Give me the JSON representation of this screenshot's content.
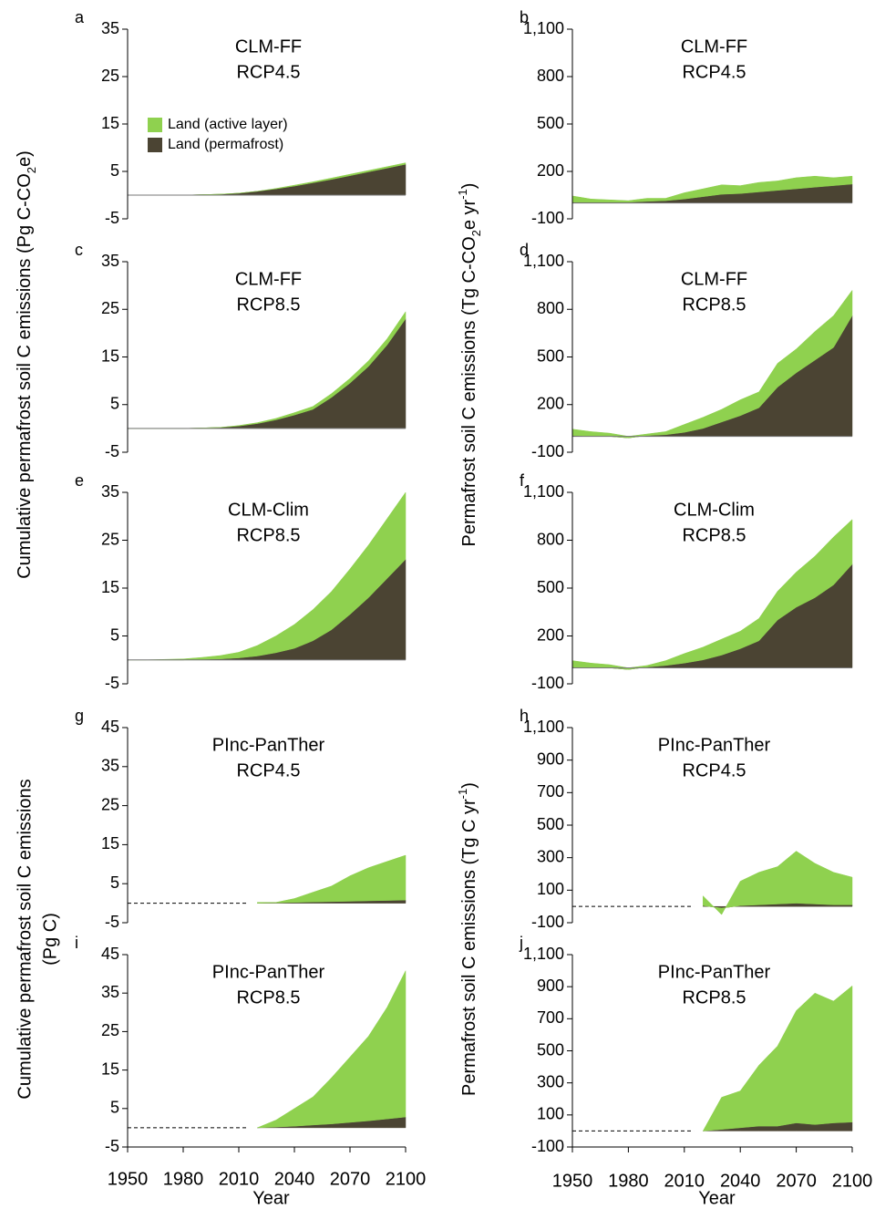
{
  "figure_labels": {
    "y_label_top_left": [
      "Cumulative  permafrost soil C emissions  (Pg C-CO",
      "2",
      "e)"
    ],
    "y_label_top_right": [
      "Permafrost soil C emissions  (Tg C-CO",
      "2",
      "e  yr",
      "-1",
      ")"
    ],
    "y_label_bottom_left": [
      "Cumulative  permafrost soil C emissions",
      "(Pg C)"
    ],
    "y_label_bottom_right": [
      "Permafrost soil C emissions  (Tg C yr",
      "-1",
      ")"
    ]
  },
  "chart_data": [
    {
      "type": "area",
      "panel": "a",
      "title": "CLM-FF",
      "subtitle": "RCP4.5",
      "legend": "upper left",
      "x": [
        1950,
        1960,
        1970,
        1980,
        1990,
        2000,
        2010,
        2020,
        2030,
        2040,
        2050,
        2060,
        2070,
        2080,
        2090,
        2100
      ],
      "xlim": [
        1950,
        2100
      ],
      "ylim": [
        -5,
        35
      ],
      "yticks": [
        -5,
        5,
        15,
        25,
        35
      ],
      "series": [
        {
          "name": "Land (permafrost)",
          "color": "#4b4433",
          "values": [
            0,
            0,
            0,
            0,
            0.1,
            0.2,
            0.4,
            0.8,
            1.3,
            1.9,
            2.6,
            3.3,
            4.1,
            4.9,
            5.7,
            6.5
          ]
        },
        {
          "name": "Land (active layer)",
          "color": "#8fd14f",
          "values": [
            0,
            0,
            0,
            0,
            0,
            0,
            0,
            0,
            0.1,
            0.2,
            0.2,
            0.3,
            0.3,
            0.3,
            0.3,
            0.3
          ]
        }
      ]
    },
    {
      "type": "area",
      "panel": "b",
      "title": "CLM-FF",
      "subtitle": "RCP4.5",
      "x": [
        1950,
        1960,
        1970,
        1980,
        1990,
        2000,
        2010,
        2020,
        2030,
        2040,
        2050,
        2060,
        2070,
        2080,
        2090,
        2100
      ],
      "xlim": [
        1950,
        2100
      ],
      "ylim": [
        -100,
        1100
      ],
      "yticks": [
        -100,
        200,
        500,
        800,
        {
          "value": 1100,
          "label": "1,100"
        }
      ],
      "series": [
        {
          "color": "#4b4433",
          "values": [
            5,
            5,
            5,
            5,
            10,
            15,
            25,
            40,
            55,
            60,
            70,
            80,
            90,
            100,
            110,
            120
          ]
        },
        {
          "color": "#8fd14f",
          "values": [
            40,
            20,
            15,
            10,
            20,
            15,
            40,
            50,
            60,
            50,
            60,
            60,
            70,
            70,
            50,
            50
          ]
        }
      ]
    },
    {
      "type": "area",
      "panel": "c",
      "title": "CLM-FF",
      "subtitle": "RCP8.5",
      "x": [
        1950,
        1960,
        1970,
        1980,
        1990,
        2000,
        2010,
        2020,
        2030,
        2040,
        2050,
        2060,
        2070,
        2080,
        2090,
        2100
      ],
      "xlim": [
        1950,
        2100
      ],
      "ylim": [
        -5,
        35
      ],
      "yticks": [
        -5,
        5,
        15,
        25,
        35
      ],
      "series": [
        {
          "color": "#4b4433",
          "values": [
            0,
            0,
            0,
            0,
            0.1,
            0.2,
            0.5,
            1,
            1.8,
            2.8,
            4,
            6.5,
            9.5,
            13,
            17.5,
            23
          ]
        },
        {
          "color": "#8fd14f",
          "values": [
            0,
            0,
            0,
            0,
            0,
            0,
            0.1,
            0.2,
            0.3,
            0.5,
            0.6,
            0.8,
            1,
            1.2,
            1.3,
            1.5
          ]
        }
      ]
    },
    {
      "type": "area",
      "panel": "d",
      "title": "CLM-FF",
      "subtitle": "RCP8.5",
      "x": [
        1950,
        1960,
        1970,
        1980,
        1990,
        2000,
        2010,
        2020,
        2030,
        2040,
        2050,
        2060,
        2070,
        2080,
        2090,
        2100
      ],
      "xlim": [
        1950,
        2100
      ],
      "ylim": [
        -100,
        1100
      ],
      "yticks": [
        -100,
        200,
        500,
        800,
        {
          "value": 1100,
          "label": "1,100"
        }
      ],
      "series": [
        {
          "color": "#4b4433",
          "values": [
            5,
            0,
            0,
            -10,
            5,
            10,
            25,
            50,
            90,
            130,
            180,
            310,
            400,
            480,
            560,
            760
          ]
        },
        {
          "color": "#8fd14f",
          "values": [
            40,
            30,
            20,
            10,
            10,
            20,
            50,
            70,
            80,
            100,
            100,
            150,
            150,
            180,
            200,
            160
          ]
        }
      ]
    },
    {
      "type": "area",
      "panel": "e",
      "title": "CLM-Clim",
      "subtitle": "RCP8.5",
      "x": [
        1950,
        1960,
        1970,
        1980,
        1990,
        2000,
        2010,
        2020,
        2030,
        2040,
        2050,
        2060,
        2070,
        2080,
        2090,
        2100
      ],
      "xlim": [
        1950,
        2100
      ],
      "ylim": [
        -5,
        35
      ],
      "yticks": [
        -5,
        5,
        15,
        25,
        35
      ],
      "series": [
        {
          "color": "#4b4433",
          "values": [
            0,
            0,
            0,
            0,
            0.1,
            0.2,
            0.4,
            0.8,
            1.5,
            2.4,
            4,
            6.3,
            9.5,
            13,
            17,
            21
          ]
        },
        {
          "color": "#8fd14f",
          "values": [
            0,
            0,
            0.1,
            0.2,
            0.4,
            0.7,
            1.2,
            2.2,
            3.5,
            5,
            6.5,
            8,
            9.5,
            11,
            12.5,
            14
          ]
        }
      ]
    },
    {
      "type": "area",
      "panel": "f",
      "title": "CLM-Clim",
      "subtitle": "RCP8.5",
      "x": [
        1950,
        1960,
        1970,
        1980,
        1990,
        2000,
        2010,
        2020,
        2030,
        2040,
        2050,
        2060,
        2070,
        2080,
        2090,
        2100
      ],
      "xlim": [
        1950,
        2100
      ],
      "ylim": [
        -100,
        1100
      ],
      "yticks": [
        -100,
        200,
        500,
        800,
        {
          "value": 1100,
          "label": "1,100"
        }
      ],
      "series": [
        {
          "color": "#4b4433",
          "values": [
            5,
            0,
            0,
            -10,
            5,
            15,
            30,
            50,
            80,
            120,
            170,
            300,
            380,
            440,
            520,
            650
          ]
        },
        {
          "color": "#8fd14f",
          "values": [
            40,
            30,
            20,
            10,
            10,
            30,
            60,
            80,
            100,
            110,
            140,
            180,
            220,
            260,
            300,
            280
          ]
        }
      ]
    },
    {
      "type": "area",
      "panel": "g",
      "title": "PInc-PanTher",
      "subtitle": "RCP4.5",
      "dashed_zero_until": 2015,
      "x": [
        1950,
        1960,
        1970,
        1980,
        1990,
        2000,
        2010,
        2020,
        2030,
        2040,
        2050,
        2060,
        2070,
        2080,
        2090,
        2100
      ],
      "xlim": [
        1950,
        2100
      ],
      "ylim": [
        -5,
        45
      ],
      "yticks": [
        -5,
        5,
        15,
        25,
        35,
        45
      ],
      "series": [
        {
          "color": "#4b4433",
          "values": [
            null,
            null,
            null,
            null,
            null,
            null,
            null,
            0,
            0.1,
            0.2,
            0.3,
            0.4,
            0.5,
            0.6,
            0.7,
            0.8
          ]
        },
        {
          "color": "#8fd14f",
          "values": [
            null,
            null,
            null,
            null,
            null,
            null,
            null,
            0.2,
            0.1,
            1,
            2.5,
            4,
            6.5,
            8.5,
            10,
            11.5
          ]
        }
      ]
    },
    {
      "type": "area",
      "panel": "h",
      "title": "PInc-PanTher",
      "subtitle": "RCP4.5",
      "dashed_zero_until": 2015,
      "x": [
        1950,
        1960,
        1970,
        1980,
        1990,
        2000,
        2010,
        2020,
        2030,
        2040,
        2050,
        2060,
        2070,
        2080,
        2090,
        2100
      ],
      "xlim": [
        1950,
        2100
      ],
      "ylim": [
        -100,
        1100
      ],
      "yticks": [
        -100,
        100,
        300,
        500,
        700,
        900,
        {
          "value": 1100,
          "label": "1,100"
        }
      ],
      "series": [
        {
          "color": "#4b4433",
          "values": [
            null,
            null,
            null,
            null,
            null,
            null,
            null,
            5,
            -10,
            5,
            10,
            15,
            20,
            15,
            10,
            10
          ]
        },
        {
          "color": "#8fd14f",
          "values": [
            null,
            null,
            null,
            null,
            null,
            null,
            null,
            60,
            -40,
            150,
            200,
            230,
            320,
            250,
            200,
            170
          ]
        }
      ]
    },
    {
      "type": "area",
      "panel": "i",
      "title": "PInc-PanTher",
      "subtitle": "RCP8.5",
      "dashed_zero_until": 2015,
      "x_label": "Year",
      "x": [
        1950,
        1960,
        1970,
        1980,
        1990,
        2000,
        2010,
        2020,
        2030,
        2040,
        2050,
        2060,
        2070,
        2080,
        2090,
        2100
      ],
      "xlim": [
        1950,
        2100
      ],
      "xticks": [
        1950,
        1980,
        2010,
        2040,
        2070,
        2100
      ],
      "ylim": [
        -5,
        45
      ],
      "yticks": [
        -5,
        5,
        15,
        25,
        35,
        45
      ],
      "series": [
        {
          "color": "#4b4433",
          "values": [
            null,
            null,
            null,
            null,
            null,
            null,
            null,
            0,
            0.2,
            0.4,
            0.7,
            1,
            1.4,
            1.8,
            2.3,
            2.8
          ]
        },
        {
          "color": "#8fd14f",
          "values": [
            null,
            null,
            null,
            null,
            null,
            null,
            null,
            0,
            1.8,
            4.6,
            7.3,
            12,
            17,
            22,
            29,
            38
          ]
        }
      ]
    },
    {
      "type": "area",
      "panel": "j",
      "title": "PInc-PanTher",
      "subtitle": "RCP8.5",
      "dashed_zero_until": 2015,
      "x_label": "Year",
      "x": [
        1950,
        1960,
        1970,
        1980,
        1990,
        2000,
        2010,
        2020,
        2030,
        2040,
        2050,
        2060,
        2070,
        2080,
        2090,
        2100
      ],
      "xlim": [
        1950,
        2100
      ],
      "xticks": [
        1950,
        1980,
        2010,
        2040,
        2070,
        2100
      ],
      "ylim": [
        -100,
        1100
      ],
      "yticks": [
        -100,
        100,
        300,
        500,
        700,
        900,
        {
          "value": 1100,
          "label": "1,100"
        }
      ],
      "series": [
        {
          "color": "#4b4433",
          "values": [
            null,
            null,
            null,
            null,
            null,
            null,
            null,
            0,
            10,
            20,
            30,
            30,
            50,
            40,
            50,
            55
          ]
        },
        {
          "color": "#8fd14f",
          "values": [
            null,
            null,
            null,
            null,
            null,
            null,
            null,
            0,
            200,
            230,
            380,
            500,
            700,
            820,
            760,
            850
          ]
        }
      ]
    }
  ]
}
